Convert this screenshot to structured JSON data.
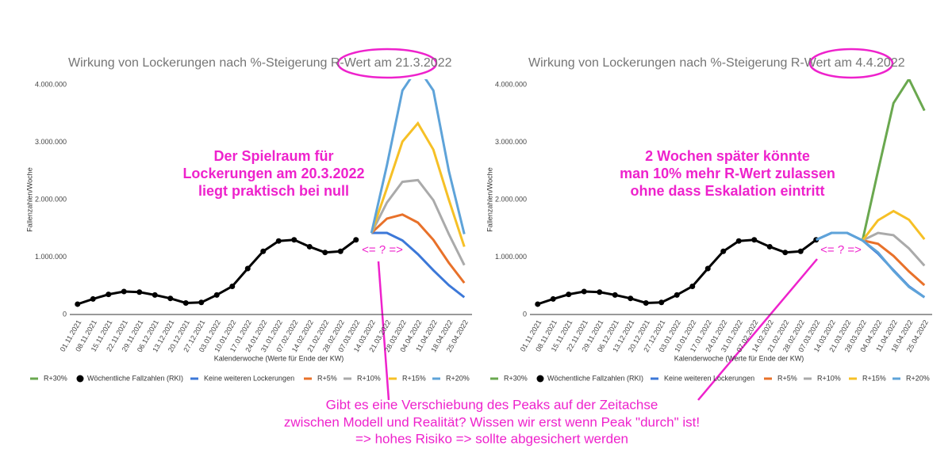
{
  "chart_data": [
    {
      "type": "line",
      "title": "Wirkung von Lockerungen nach %-Steigerung R-Wert am 21.3.2022",
      "x_label": "Kalenderwoche (Werte für Ende der KW)",
      "y_label": "Fallenzahlen/Woche",
      "categories": [
        "01.11.2021",
        "08.11.2021",
        "15.11.2021",
        "22.11.2021",
        "29.11.2021",
        "06.12.2021",
        "13.12.2021",
        "20.12.2021",
        "27.12.2021",
        "03.01.2022",
        "10.01.2022",
        "17.01.2022",
        "24.01.2022",
        "31.01.2022",
        "07.02.2022",
        "14.02.2022",
        "21.02.2022",
        "28.02.2022",
        "07.03.2022",
        "14.03.2022",
        "21.03.2022",
        "28.03.2022",
        "04.04.2022",
        "11.04.2022",
        "18.04.2022",
        "25.04.2022"
      ],
      "ylim": [
        0,
        4000000
      ],
      "yticks": [
        0,
        {
          "value": 1000000,
          "label": "1.000.000"
        },
        {
          "value": 2000000,
          "label": "2.000.000"
        },
        {
          "value": 3000000,
          "label": "3.000.000"
        },
        {
          "value": 4000000,
          "label": "4.000.000"
        }
      ],
      "series": [
        {
          "name": "R+30%",
          "color": "#6aa84f",
          "values": [
            null,
            null,
            null,
            null,
            null,
            null,
            null,
            null,
            null,
            null,
            null,
            null,
            null,
            null,
            null,
            null,
            null,
            null,
            null,
            null,
            null,
            null,
            null,
            null,
            null,
            null
          ]
        },
        {
          "name": "Wöchentliche Fallzahlen (RKI)",
          "color": "#000000",
          "markers": true,
          "values": [
            180000,
            270000,
            350000,
            400000,
            390000,
            340000,
            280000,
            200000,
            210000,
            340000,
            490000,
            800000,
            1100000,
            1280000,
            1300000,
            1180000,
            1080000,
            1100000,
            1300000,
            null,
            null,
            null,
            null,
            null,
            null,
            null
          ]
        },
        {
          "name": "Keine weiteren Lockerungen",
          "color": "#3c78d8",
          "values": [
            null,
            null,
            null,
            null,
            null,
            null,
            null,
            null,
            null,
            null,
            null,
            null,
            null,
            null,
            null,
            null,
            null,
            null,
            null,
            1420000,
            1420000,
            1290000,
            1050000,
            770000,
            510000,
            300000
          ]
        },
        {
          "name": "R+5%",
          "color": "#e8712a",
          "values": [
            null,
            null,
            null,
            null,
            null,
            null,
            null,
            null,
            null,
            null,
            null,
            null,
            null,
            null,
            null,
            null,
            null,
            null,
            null,
            1420000,
            1670000,
            1740000,
            1600000,
            1300000,
            900000,
            550000
          ]
        },
        {
          "name": "R+10%",
          "color": "#aaaaaa",
          "values": [
            null,
            null,
            null,
            null,
            null,
            null,
            null,
            null,
            null,
            null,
            null,
            null,
            null,
            null,
            null,
            null,
            null,
            null,
            null,
            1420000,
            1950000,
            2310000,
            2340000,
            1990000,
            1400000,
            860000
          ]
        },
        {
          "name": "R+15%",
          "color": "#f6c026",
          "values": [
            null,
            null,
            null,
            null,
            null,
            null,
            null,
            null,
            null,
            null,
            null,
            null,
            null,
            null,
            null,
            null,
            null,
            null,
            null,
            1420000,
            2200000,
            3010000,
            3330000,
            2870000,
            2000000,
            1180000
          ]
        },
        {
          "name": "R+20%",
          "color": "#5ea3d9",
          "values": [
            null,
            null,
            null,
            null,
            null,
            null,
            null,
            null,
            null,
            null,
            null,
            null,
            null,
            null,
            null,
            null,
            null,
            null,
            null,
            1420000,
            2600000,
            3900000,
            4300000,
            3900000,
            2500000,
            1400000
          ]
        }
      ],
      "annotation": [
        "Der Spielraum für",
        "Lockerungen am 20.3.2022",
        "liegt praktisch bei null"
      ],
      "marker_text": "<= ? =>"
    },
    {
      "type": "line",
      "title": "Wirkung von Lockerungen nach %-Steigerung R-Wert am 4.4.2022",
      "x_label": "Kalenderwoche (Werte für Ende der KW)",
      "y_label": "Fallenzahlen/Woche",
      "categories": [
        "01.11.2021",
        "08.11.2021",
        "15.11.2021",
        "22.11.2021",
        "29.11.2021",
        "06.12.2021",
        "13.12.2021",
        "20.12.2021",
        "27.12.2021",
        "03.01.2022",
        "10.01.2022",
        "17.01.2022",
        "24.01.2022",
        "31.01.2022",
        "07.02.2022",
        "14.02.2022",
        "21.02.2022",
        "28.02.2022",
        "07.03.2022",
        "14.03.2022",
        "21.03.2022",
        "28.03.2022",
        "04.04.2022",
        "11.04.2022",
        "18.04.2022",
        "25.04.2022"
      ],
      "ylim": [
        0,
        4000000
      ],
      "yticks": [
        0,
        {
          "value": 1000000,
          "label": "1.000.000"
        },
        {
          "value": 2000000,
          "label": "2.000.000"
        },
        {
          "value": 3000000,
          "label": "3.000.000"
        },
        {
          "value": 4000000,
          "label": "4.000.000"
        }
      ],
      "series": [
        {
          "name": "R+30%",
          "color": "#6aa84f",
          "values": [
            null,
            null,
            null,
            null,
            null,
            null,
            null,
            null,
            null,
            null,
            null,
            null,
            null,
            null,
            null,
            null,
            null,
            null,
            null,
            null,
            null,
            1290000,
            2500000,
            3680000,
            4100000,
            3550000
          ]
        },
        {
          "name": "Wöchentliche Fallzahlen (RKI)",
          "color": "#000000",
          "markers": true,
          "values": [
            180000,
            270000,
            350000,
            400000,
            390000,
            340000,
            280000,
            200000,
            210000,
            340000,
            490000,
            800000,
            1100000,
            1280000,
            1300000,
            1180000,
            1080000,
            1100000,
            1300000,
            null,
            null,
            null,
            null,
            null,
            null,
            null
          ]
        },
        {
          "name": "Keine weiteren Lockerungen",
          "color": "#3c78d8",
          "values": [
            null,
            null,
            null,
            null,
            null,
            null,
            null,
            null,
            null,
            null,
            null,
            null,
            null,
            null,
            null,
            null,
            null,
            null,
            1300000,
            1420000,
            1420000,
            1290000,
            1060000,
            770000,
            490000,
            300000
          ]
        },
        {
          "name": "R+5%",
          "color": "#e8712a",
          "values": [
            null,
            null,
            null,
            null,
            null,
            null,
            null,
            null,
            null,
            null,
            null,
            null,
            null,
            null,
            null,
            null,
            null,
            null,
            null,
            null,
            null,
            1290000,
            1230000,
            1020000,
            750000,
            510000
          ]
        },
        {
          "name": "R+10%",
          "color": "#aaaaaa",
          "values": [
            null,
            null,
            null,
            null,
            null,
            null,
            null,
            null,
            null,
            null,
            null,
            null,
            null,
            null,
            null,
            null,
            null,
            null,
            null,
            null,
            null,
            1290000,
            1420000,
            1380000,
            1150000,
            850000
          ]
        },
        {
          "name": "R+15%",
          "color": "#f6c026",
          "values": [
            null,
            null,
            null,
            null,
            null,
            null,
            null,
            null,
            null,
            null,
            null,
            null,
            null,
            null,
            null,
            null,
            null,
            null,
            null,
            null,
            null,
            1290000,
            1640000,
            1800000,
            1650000,
            1310000
          ]
        },
        {
          "name": "R+20%",
          "color": "#5ea3d9",
          "values": [
            null,
            null,
            null,
            null,
            null,
            null,
            null,
            null,
            null,
            null,
            null,
            null,
            null,
            null,
            null,
            null,
            null,
            null,
            1300000,
            1420000,
            1420000,
            1290000,
            1080000,
            760000,
            480000,
            300000
          ]
        }
      ],
      "annotation": [
        "2 Wochen später könnte",
        "man 10% mehr R-Wert zulassen",
        "ohne dass Eskalation eintritt"
      ],
      "marker_text": "<= ? =>"
    }
  ],
  "note": [
    "Gibt es eine Verschiebung des Peaks auf der Zeitachse",
    "zwischen Modell und Realität? Wissen wir erst wenn Peak \"durch\" ist!",
    "=> hohes Risiko => sollte abgesichert werden"
  ]
}
